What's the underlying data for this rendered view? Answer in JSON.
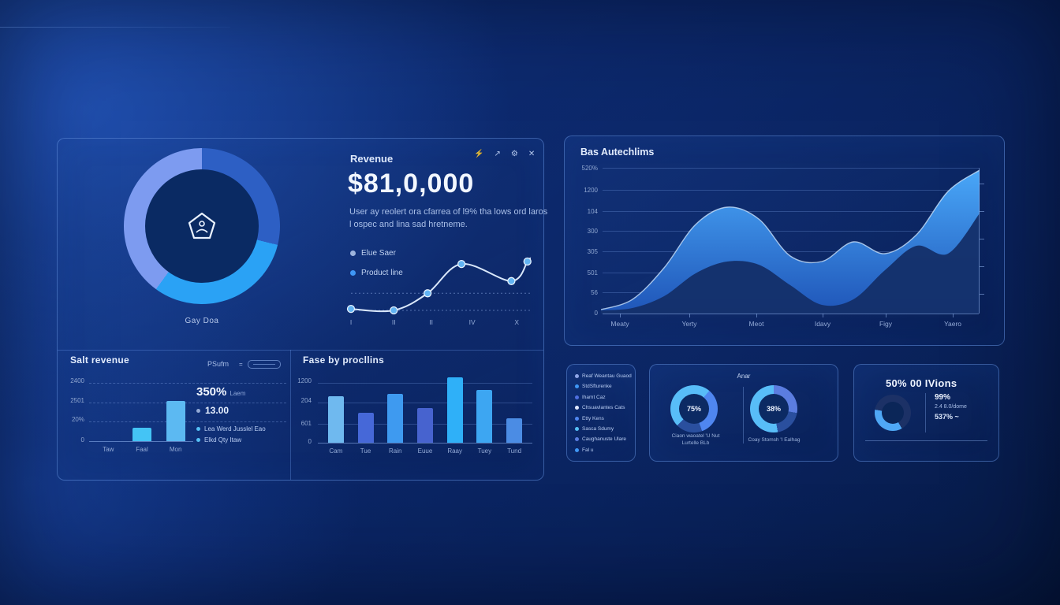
{
  "main_panel": {
    "donut": {
      "label": "Gay Doa",
      "center_icon": "pentagon-user-icon"
    },
    "revenue": {
      "title": "Revenue",
      "amount": "$81,0,000",
      "description": "User ay reolert ora cfarrea of l9% tha lows ord laros l ospec and lina sad hretneme.",
      "legend": [
        {
          "label": "Elue Saer",
          "color": "#9db4dd"
        },
        {
          "label": "Product line",
          "color": "#3f97f5"
        }
      ],
      "icons": [
        {
          "name": "bolt-icon",
          "glyph": "⚡"
        },
        {
          "name": "arrow-icon",
          "glyph": "↗"
        },
        {
          "name": "gear-icon",
          "glyph": "⚙"
        },
        {
          "name": "close-icon",
          "glyph": "✕"
        }
      ]
    },
    "salt": {
      "title": "Salt revenue",
      "control_label": "PSufm",
      "control_eq": "=",
      "stat_primary": "350%",
      "stat_primary_suffix": "Laem",
      "stat_secondary": "13.00",
      "legend": [
        {
          "label": "Lea Werd Jusslel Eao",
          "color": "#55c1f7"
        },
        {
          "label": "Elkd Qty Itaw",
          "color": "#55c1f7"
        }
      ]
    },
    "fase": {
      "title": "Fase by procllins"
    }
  },
  "area_panel": {
    "title": "Bas Autechlims"
  },
  "legend_panel": {
    "items": [
      {
        "label": "Reaf Weantau Guaod",
        "color": "#8fa6e8"
      },
      {
        "label": "StdSfturenke",
        "color": "#3f97f5"
      },
      {
        "label": "Ihamt Caz",
        "color": "#4f6fe0"
      },
      {
        "label": "Chsuavlantes Cats",
        "color": "#dfe8ff"
      },
      {
        "label": "Etty Kens",
        "color": "#4f86f0"
      },
      {
        "label": "Sasca Sdumy",
        "color": "#55c1f7"
      },
      {
        "label": "Caughanuste Ulare",
        "color": "#5b7de0"
      },
      {
        "label": "Fal u",
        "color": "#3f97f5"
      }
    ]
  },
  "gauges_panel": {
    "title": "Anar",
    "left": {
      "value": "75%",
      "caption_line1": "Ciaon waoatel 'U Nut",
      "caption_line2": "Lurtelle BLb"
    },
    "right": {
      "value": "38%",
      "caption": "Coay Stomsh 'I Ealhag"
    }
  },
  "kpi_panel": {
    "title": "50% 00 IVions",
    "stat1": "99%",
    "stat2": "2.4 8.0/dome",
    "stat3": "537% ~"
  },
  "chart_data": {
    "main_donut": {
      "type": "pie",
      "label": "Gay Doa",
      "slices": [
        {
          "name": "segment-top-right",
          "value": 29,
          "color": "#2d5fc4"
        },
        {
          "name": "segment-right-bottom",
          "value": 31,
          "color": "#2aa2f5"
        },
        {
          "name": "segment-left",
          "value": 40,
          "color": "#7d9bf0"
        }
      ]
    },
    "revenue_line": {
      "type": "line",
      "x_ticks": [
        "I",
        "II",
        "II",
        "IV",
        "X"
      ],
      "points_x": [
        0,
        24,
        43,
        62,
        90,
        99
      ],
      "points_y": [
        3,
        0,
        35,
        95,
        60,
        100
      ],
      "gridlines_y": [
        35,
        0
      ],
      "line_color": "#d9e7fa",
      "point_color": "#62b4f2"
    },
    "traffic_area": {
      "type": "area",
      "title": "Bas Autechlims",
      "y_ticks": [
        "520%",
        "1200",
        "104",
        "300",
        "305",
        "501",
        "56",
        "0"
      ],
      "x_ticks": [
        "Meaty",
        "Yerty",
        "Meot",
        "Idavy",
        "Figy",
        "Yaero"
      ],
      "series": [
        {
          "name": "front",
          "color_top": "#49a7f8",
          "color_bottom": "#1f55b8",
          "values": [
            3,
            10,
            32,
            62,
            74,
            66,
            40,
            36,
            50,
            42,
            55,
            85,
            100
          ]
        },
        {
          "name": "back",
          "color": "#14306a",
          "values": [
            2,
            4,
            12,
            28,
            36,
            34,
            20,
            6,
            10,
            30,
            47,
            42,
            70
          ]
        }
      ]
    },
    "salt_bars": {
      "type": "bar",
      "y_ticks": [
        "2400",
        "2501",
        "20%",
        "0"
      ],
      "categories": [
        "Taw",
        "Faal",
        "Mon"
      ],
      "values": [
        0,
        22,
        67
      ],
      "colors": [
        "#44c4f5",
        "#44c4f5",
        "#5cb9f2"
      ]
    },
    "fase_bars": {
      "type": "bar",
      "y_ticks": [
        "1200",
        "204",
        "601",
        "0"
      ],
      "categories": [
        "Cam",
        "Tue",
        "Rain",
        "Euue",
        "Raay",
        "Tuey",
        "Tund"
      ],
      "values": [
        71,
        46,
        75,
        53,
        100,
        81,
        37
      ],
      "colors": [
        "#6fb9ef",
        "#4668d8",
        "#3e9af0",
        "#4763cf",
        "#2fb0f8",
        "#3da6f2",
        "#4b8ce4"
      ]
    },
    "gauge_left": {
      "type": "donut",
      "value": "75%",
      "conic": {
        "from": 40,
        "stops": [
          [
            "#4f86f0",
            120
          ],
          [
            "#2a4f9e",
            185
          ],
          [
            "#58bdf8",
            360
          ]
        ]
      }
    },
    "gauge_right": {
      "type": "donut",
      "value": "38%",
      "conic": {
        "from": 0,
        "stops": [
          [
            "#5b7de0",
            100
          ],
          [
            "#2a4f9e",
            170
          ],
          [
            "#58bdf8",
            360
          ]
        ]
      }
    },
    "kpi_donut": {
      "type": "donut",
      "conic": {
        "from": 150,
        "stops": [
          [
            "#4fa8f5",
            130
          ],
          [
            "#1c3166",
            360
          ]
        ]
      }
    }
  }
}
